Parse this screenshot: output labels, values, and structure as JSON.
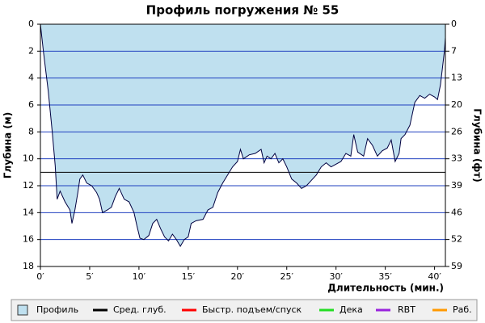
{
  "chart_data": {
    "type": "area",
    "title": "Профиль погружения № 55",
    "x_label": "Длительность (мин.)",
    "y_label": "Глубина (м)",
    "y2_label": "Глубина (фт)",
    "xlim": [
      0,
      41.1
    ],
    "xticks": [
      {
        "value": 0,
        "label": "0′"
      },
      {
        "value": 5,
        "label": "5′"
      },
      {
        "value": 10,
        "label": "10′"
      },
      {
        "value": 15,
        "label": "15′"
      },
      {
        "value": 20,
        "label": "20′"
      },
      {
        "value": 25,
        "label": "25′"
      },
      {
        "value": 30,
        "label": "30′"
      },
      {
        "value": 35,
        "label": "35′"
      },
      {
        "value": 40,
        "label": "40′"
      }
    ],
    "ylim": [
      0,
      18
    ],
    "yticks": [
      0,
      2,
      4,
      6,
      8,
      10,
      12,
      14,
      16,
      18
    ],
    "y2lim": [
      0,
      59.06
    ],
    "y2ticks": [
      {
        "value": 0,
        "label": "0"
      },
      {
        "value": 6.56,
        "label": "7"
      },
      {
        "value": 13.12,
        "label": "13"
      },
      {
        "value": 19.69,
        "label": "20"
      },
      {
        "value": 26.25,
        "label": "26"
      },
      {
        "value": 32.81,
        "label": "33"
      },
      {
        "value": 39.37,
        "label": "39"
      },
      {
        "value": 45.93,
        "label": "46"
      },
      {
        "value": 52.49,
        "label": "52"
      },
      {
        "value": 59.06,
        "label": "59"
      }
    ],
    "grid": true,
    "grid_color": "#1f3fbf",
    "series": [
      {
        "name": "Профиль",
        "color": "#bfe0ef",
        "x": [
          0,
          0.3,
          0.8,
          1.2,
          1.5,
          1.7,
          2.0,
          2.5,
          3.0,
          3.2,
          3.5,
          3.8,
          4.0,
          4.3,
          4.7,
          5.2,
          5.7,
          6.0,
          6.3,
          6.8,
          7.2,
          7.6,
          8.0,
          8.5,
          9.0,
          9.5,
          9.8,
          10.1,
          10.5,
          11.0,
          11.4,
          11.8,
          12.2,
          12.6,
          13.0,
          13.4,
          13.8,
          14.2,
          14.6,
          15.0,
          15.3,
          15.8,
          16.5,
          17.0,
          17.5,
          18.0,
          18.5,
          19.0,
          19.5,
          20.0,
          20.3,
          20.6,
          21.2,
          21.8,
          22.4,
          22.7,
          23.0,
          23.4,
          23.8,
          24.2,
          24.6,
          25.0,
          25.5,
          26.0,
          26.5,
          27.0,
          27.5,
          28.0,
          28.5,
          29.0,
          29.5,
          30.0,
          30.5,
          31.0,
          31.5,
          31.8,
          32.2,
          32.8,
          33.2,
          33.7,
          34.2,
          34.7,
          35.2,
          35.6,
          36.0,
          36.4,
          36.6,
          37.0,
          37.5,
          38.0,
          38.5,
          39.0,
          39.5,
          40.0,
          40.3,
          40.6,
          41.0,
          41.1
        ],
        "values": [
          0,
          2,
          5,
          8,
          10.5,
          13,
          12.4,
          13.2,
          13.8,
          14.8,
          13.8,
          12.5,
          11.5,
          11.2,
          11.8,
          12.0,
          12.5,
          13.0,
          14.0,
          13.8,
          13.6,
          12.8,
          12.2,
          13.0,
          13.2,
          14.0,
          15.0,
          15.9,
          16.0,
          15.7,
          14.8,
          14.5,
          15.2,
          15.8,
          16.1,
          15.6,
          16.0,
          16.5,
          16.0,
          15.8,
          14.8,
          14.6,
          14.5,
          13.8,
          13.6,
          12.5,
          11.8,
          11.2,
          10.6,
          10.2,
          9.3,
          10.0,
          9.7,
          9.6,
          9.3,
          10.3,
          9.8,
          10.0,
          9.6,
          10.3,
          10.0,
          10.6,
          11.5,
          11.8,
          12.2,
          12.0,
          11.6,
          11.2,
          10.6,
          10.3,
          10.6,
          10.4,
          10.2,
          9.6,
          9.8,
          8.2,
          9.5,
          9.8,
          8.5,
          9.0,
          9.8,
          9.4,
          9.2,
          8.6,
          10.2,
          9.6,
          8.5,
          8.2,
          7.5,
          5.8,
          5.3,
          5.5,
          5.2,
          5.4,
          5.6,
          4.5,
          2.0,
          1.0
        ]
      }
    ],
    "average": {
      "name": "Сред. глуб.",
      "color": "#000000",
      "value": 11
    },
    "legend_extra": [
      {
        "name": "Быстр. подъем/спуск",
        "color": "#ff0000"
      },
      {
        "name": "Дека",
        "color": "#22dd22"
      },
      {
        "name": "RBT",
        "color": "#9922dd"
      },
      {
        "name": "Раб.",
        "color": "#ff9900"
      }
    ]
  }
}
